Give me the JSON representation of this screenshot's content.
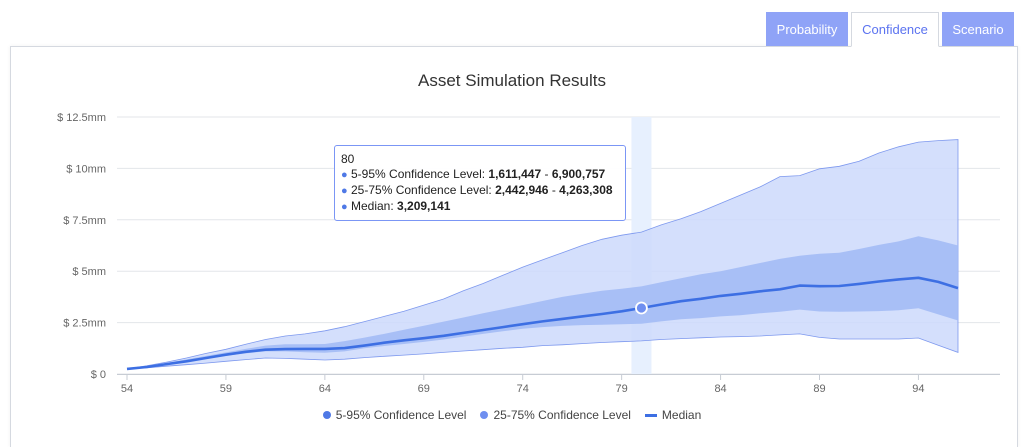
{
  "tabs": [
    "Probability",
    "Confidence",
    "Scenario"
  ],
  "colors": {
    "band_5_95": "#cdd9fb",
    "band_25_75": "#a3bbf5",
    "median": "#3d6fe3",
    "tab_inactive": "#8fa3f7",
    "highlight": "#e7f0fe"
  },
  "tooltip": {
    "header": "80",
    "rows": [
      {
        "label": "5-95% Confidence Level: ",
        "low": "1,611,447",
        "sep": " - ",
        "high": "6,900,757"
      },
      {
        "label": "25-75% Confidence Level: ",
        "low": "2,442,946",
        "sep": " - ",
        "high": "4,263,308"
      },
      {
        "label": "Median: ",
        "value": "3,209,141"
      }
    ]
  },
  "chart_data": {
    "type": "area",
    "title": "Asset Simulation Results",
    "xlabel": "",
    "ylabel": "",
    "ylim": [
      0,
      12.5
    ],
    "yunit": "$ millions",
    "yticks": [
      0,
      2.5,
      5,
      7.5,
      10,
      12.5
    ],
    "ytick_labels": [
      "$ 0",
      "$ 2.5mm",
      "$ 5mm",
      "$ 7.5mm",
      "$ 10mm",
      "$ 12.5mm"
    ],
    "xlim": [
      54,
      96
    ],
    "xticks": [
      54,
      59,
      64,
      69,
      74,
      79,
      84,
      89,
      94
    ],
    "highlight_x": 80,
    "x": [
      54,
      55,
      56,
      57,
      58,
      59,
      60,
      61,
      62,
      63,
      64,
      65,
      66,
      67,
      68,
      69,
      70,
      71,
      72,
      73,
      74,
      75,
      76,
      77,
      78,
      79,
      80,
      81,
      82,
      83,
      84,
      85,
      86,
      87,
      88,
      89,
      90,
      91,
      92,
      93,
      94,
      95,
      96
    ],
    "series": [
      {
        "name": "5-95% Confidence Level",
        "low": [
          0.25,
          0.3,
          0.38,
          0.45,
          0.53,
          0.62,
          0.7,
          0.78,
          0.76,
          0.72,
          0.68,
          0.72,
          0.8,
          0.86,
          0.92,
          0.98,
          1.05,
          1.12,
          1.18,
          1.25,
          1.3,
          1.38,
          1.42,
          1.48,
          1.53,
          1.57,
          1.61,
          1.68,
          1.72,
          1.76,
          1.8,
          1.82,
          1.85,
          1.9,
          1.95,
          1.78,
          1.7,
          1.7,
          1.7,
          1.7,
          1.75,
          1.4,
          1.05
        ],
        "high": [
          0.25,
          0.4,
          0.58,
          0.78,
          1.0,
          1.2,
          1.45,
          1.68,
          1.85,
          1.95,
          2.1,
          2.3,
          2.55,
          2.8,
          3.05,
          3.35,
          3.65,
          4.05,
          4.4,
          4.8,
          5.2,
          5.55,
          5.9,
          6.25,
          6.55,
          6.75,
          6.9,
          7.25,
          7.55,
          7.9,
          8.3,
          8.7,
          9.1,
          9.6,
          9.65,
          9.98,
          10.1,
          10.35,
          10.75,
          11.05,
          11.28,
          11.35,
          11.4
        ]
      },
      {
        "name": "25-75% Confidence Level",
        "low": [
          0.25,
          0.34,
          0.47,
          0.6,
          0.74,
          0.88,
          1.0,
          1.1,
          1.1,
          1.06,
          1.03,
          1.1,
          1.25,
          1.36,
          1.46,
          1.56,
          1.68,
          1.82,
          1.95,
          2.08,
          2.2,
          2.28,
          2.34,
          2.38,
          2.4,
          2.42,
          2.44,
          2.56,
          2.66,
          2.72,
          2.8,
          2.86,
          2.95,
          3.03,
          3.13,
          3.04,
          3.03,
          3.04,
          3.06,
          3.1,
          3.2,
          2.9,
          2.6
        ],
        "high": [
          0.25,
          0.36,
          0.54,
          0.71,
          0.88,
          1.05,
          1.22,
          1.38,
          1.45,
          1.45,
          1.46,
          1.6,
          1.77,
          1.95,
          2.15,
          2.35,
          2.55,
          2.75,
          2.95,
          3.15,
          3.35,
          3.55,
          3.75,
          3.9,
          4.05,
          4.15,
          4.26,
          4.46,
          4.66,
          4.85,
          5.0,
          5.2,
          5.4,
          5.6,
          5.75,
          5.85,
          5.9,
          6.08,
          6.28,
          6.45,
          6.7,
          6.5,
          6.25
        ]
      },
      {
        "name": "Median",
        "values": [
          0.25,
          0.34,
          0.48,
          0.62,
          0.78,
          0.94,
          1.08,
          1.18,
          1.21,
          1.22,
          1.22,
          1.26,
          1.38,
          1.52,
          1.64,
          1.74,
          1.86,
          2.0,
          2.14,
          2.28,
          2.42,
          2.56,
          2.68,
          2.8,
          2.92,
          3.05,
          3.21,
          3.38,
          3.54,
          3.66,
          3.8,
          3.9,
          4.02,
          4.12,
          4.3,
          4.27,
          4.28,
          4.38,
          4.5,
          4.6,
          4.68,
          4.48,
          4.18
        ]
      }
    ],
    "legend": [
      "5-95% Confidence Level",
      "25-75% Confidence Level",
      "Median"
    ],
    "legend_position": "bottom-center",
    "grid": true
  }
}
